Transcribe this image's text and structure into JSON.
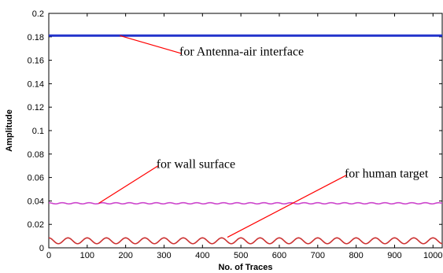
{
  "chart_data": {
    "type": "line",
    "xlabel": "No. of Traces",
    "ylabel": "Amplitude",
    "xlim": [
      0,
      1024
    ],
    "ylim": [
      0,
      0.2
    ],
    "x_ticks": [
      0,
      100,
      200,
      300,
      400,
      500,
      600,
      700,
      800,
      900,
      1000
    ],
    "y_ticks": [
      0,
      0.02,
      0.04,
      0.06,
      0.08,
      0.1,
      0.12,
      0.14,
      0.16,
      0.18,
      0.2
    ],
    "grid": false,
    "series": [
      {
        "color": "#2233cc",
        "level": 0.181,
        "ripple": 0,
        "period": 0
      },
      {
        "color": "#cc44cc",
        "level": 0.038,
        "ripple": 0.0005,
        "period": 35
      },
      {
        "color": "#cc3333",
        "level": 0.006,
        "ripple": 0.0025,
        "period": 50
      }
    ],
    "annotations": [
      {
        "text": "for Antenna-air interface",
        "point": [
          185,
          0.181
        ],
        "text_pos": [
          340,
          0.164
        ]
      },
      {
        "text": "for wall surface",
        "point": [
          130,
          0.038
        ],
        "text_pos": [
          280,
          0.068
        ]
      },
      {
        "text": "for human target",
        "point": [
          465,
          0.009
        ],
        "text_pos": [
          770,
          0.06
        ]
      }
    ]
  }
}
